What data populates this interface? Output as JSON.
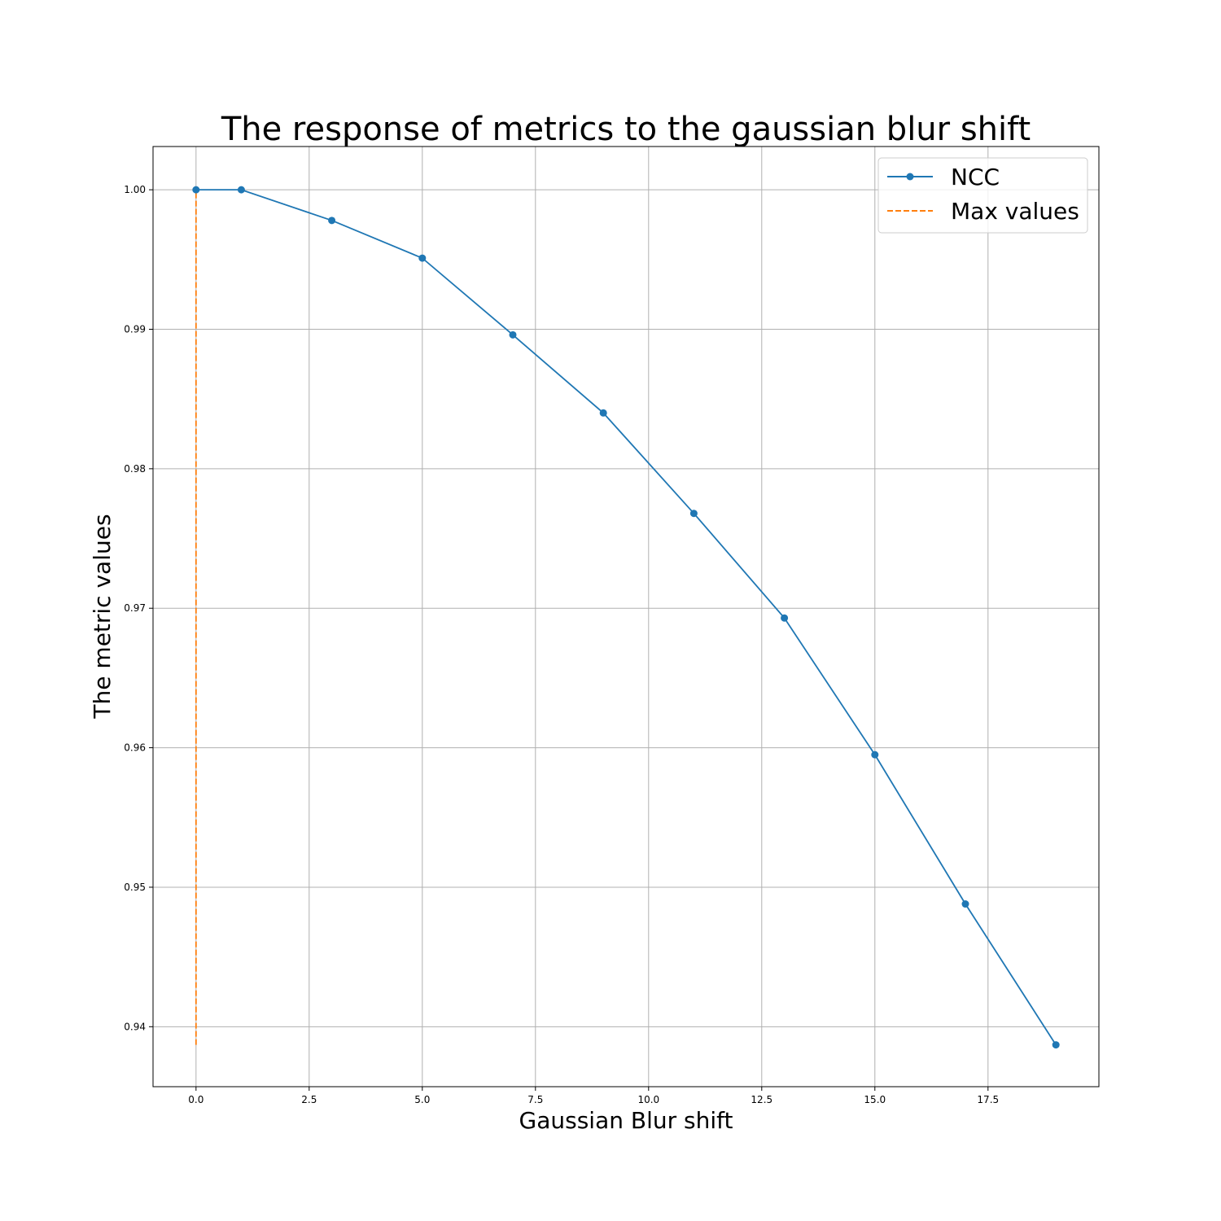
{
  "chart_data": {
    "type": "line",
    "title": "The response of metrics to the gaussian blur shift",
    "xlabel": "Gaussian Blur shift",
    "ylabel": "The metric values",
    "xlim": [
      -0.95,
      19.95
    ],
    "ylim": [
      0.9357,
      1.0031
    ],
    "x_ticks": [
      0.0,
      2.5,
      5.0,
      7.5,
      10.0,
      12.5,
      15.0,
      17.5
    ],
    "x_tick_labels": [
      "0.0",
      "2.5",
      "5.0",
      "7.5",
      "10.0",
      "12.5",
      "15.0",
      "17.5"
    ],
    "y_ticks": [
      0.94,
      0.95,
      0.96,
      0.97,
      0.98,
      0.99,
      1.0
    ],
    "y_tick_labels": [
      "0.94",
      "0.95",
      "0.96",
      "0.97",
      "0.98",
      "0.99",
      "1.00"
    ],
    "grid": true,
    "legend_position": "top-right",
    "series": [
      {
        "name": "NCC",
        "color": "#1f77b4",
        "style": "solid",
        "marker": "circle",
        "x": [
          0,
          1,
          3,
          5,
          7,
          9,
          11,
          13,
          15,
          17,
          19
        ],
        "y": [
          1.0,
          1.0,
          0.9978,
          0.9951,
          0.9896,
          0.984,
          0.9768,
          0.9693,
          0.9595,
          0.9488,
          0.9387
        ]
      },
      {
        "name": "Max values",
        "color": "#ff7f0e",
        "style": "dashed",
        "marker": "none",
        "x": [
          0,
          0
        ],
        "y": [
          0.9387,
          1.0
        ]
      }
    ]
  }
}
